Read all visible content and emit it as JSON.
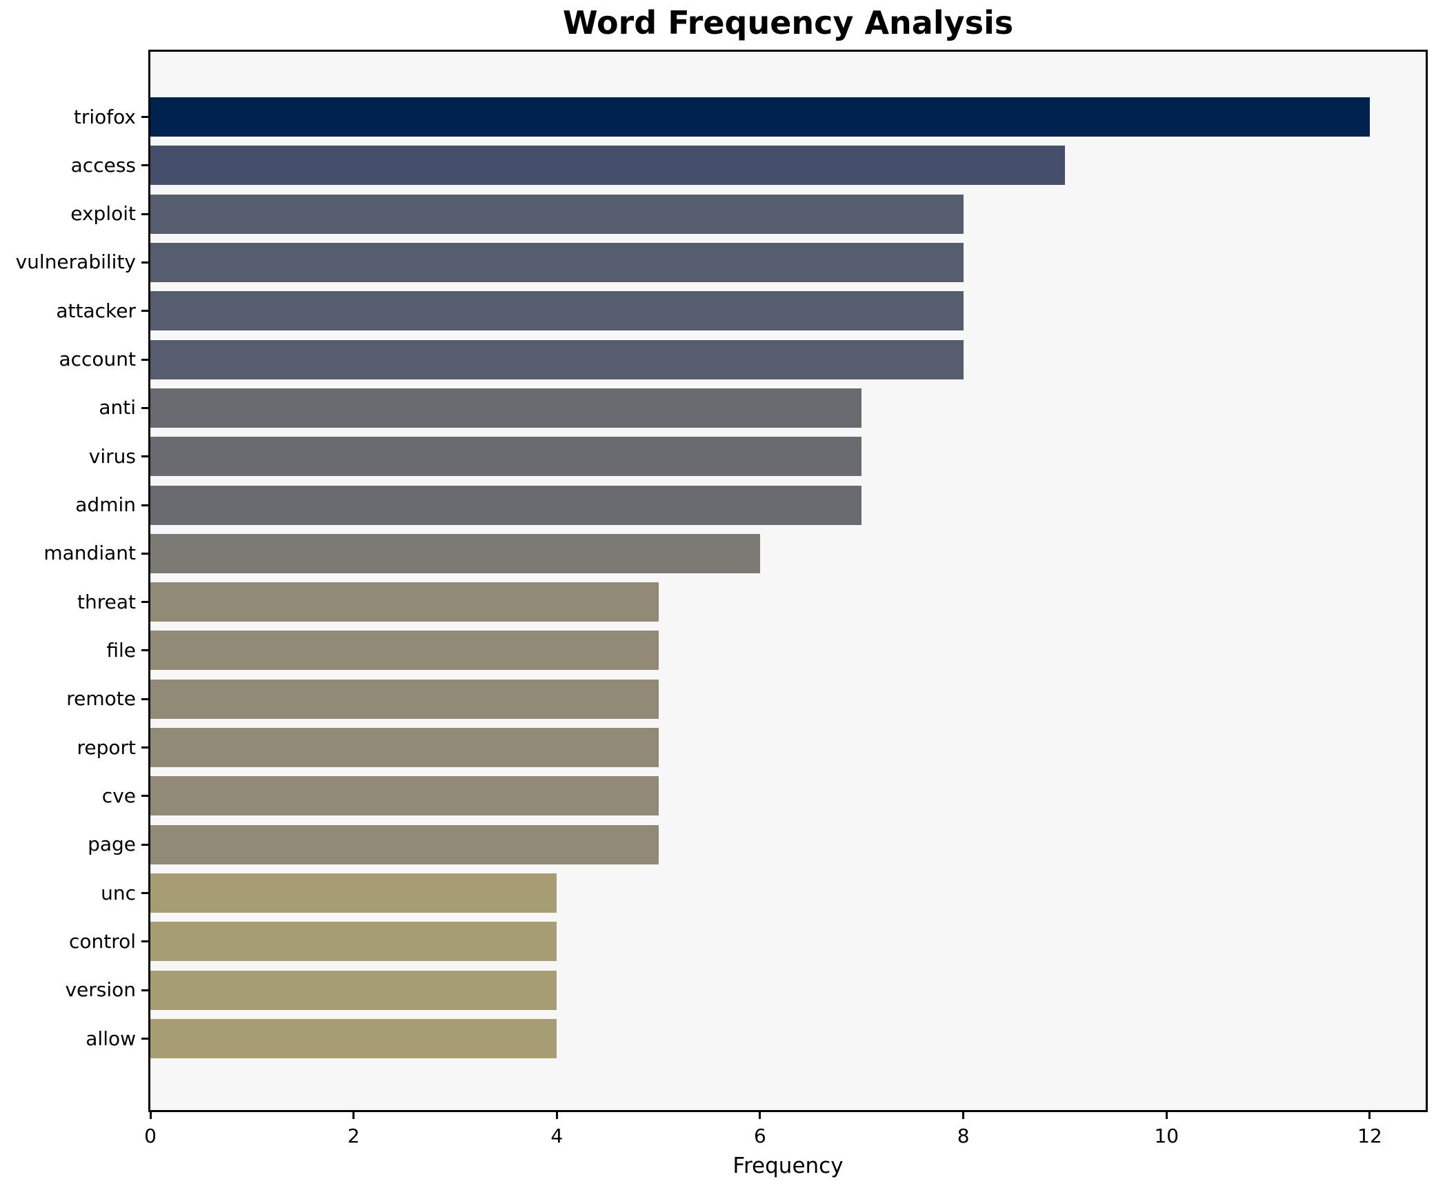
{
  "chart_data": {
    "type": "bar",
    "orientation": "horizontal",
    "title": "Word Frequency Analysis",
    "xlabel": "Frequency",
    "ylabel": "",
    "categories": [
      "triofox",
      "access",
      "exploit",
      "vulnerability",
      "attacker",
      "account",
      "anti",
      "virus",
      "admin",
      "mandiant",
      "threat",
      "file",
      "remote",
      "report",
      "cve",
      "page",
      "unc",
      "control",
      "version",
      "allow"
    ],
    "values": [
      12,
      9,
      8,
      8,
      8,
      8,
      7,
      7,
      7,
      6,
      5,
      5,
      5,
      5,
      5,
      5,
      4,
      4,
      4,
      4
    ],
    "bar_colors": [
      "#00224e",
      "#454f6b",
      "#565d6f",
      "#565d6f",
      "#565d6f",
      "#565d6f",
      "#696b70",
      "#696b70",
      "#696b70",
      "#7b7a74",
      "#908a77",
      "#908a77",
      "#908a77",
      "#908a77",
      "#908a77",
      "#908a77",
      "#a69d72",
      "#a69d72",
      "#a69d72",
      "#a69d72"
    ],
    "xlim": [
      0,
      12.55
    ],
    "xticks": [
      0,
      2,
      4,
      6,
      8,
      10,
      12
    ],
    "grid": false,
    "legend": null,
    "plot_bg": "#f7f7f8",
    "figure_bg": "#ffffff"
  }
}
